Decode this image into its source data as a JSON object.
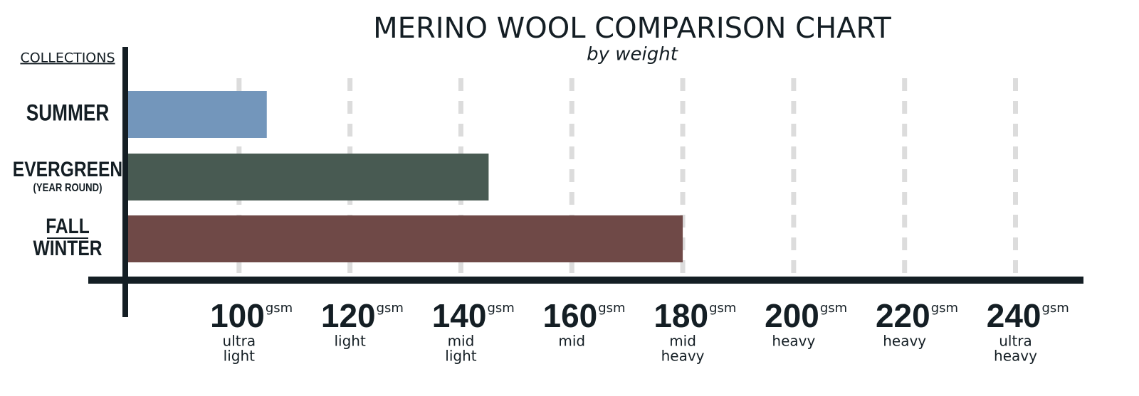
{
  "chart_data": {
    "type": "bar",
    "orientation": "horizontal",
    "title": "MERINO WOOL COMPARISON CHART",
    "subtitle": "by weight",
    "y_label": "COLLECTIONS",
    "categories": [
      [
        "SUMMER"
      ],
      [
        "EVERGREEN",
        "(YEAR ROUND)"
      ],
      [
        "FALL",
        "WINTER"
      ]
    ],
    "values": [
      105,
      145,
      180
    ],
    "colors": [
      "#7396bb",
      "#485a52",
      "#6f4947"
    ],
    "xlim": [
      80,
      252
    ],
    "xticks": [
      100,
      120,
      140,
      160,
      180,
      200,
      220,
      240
    ],
    "x_unit": "gsm",
    "xtick_notes": [
      [
        "ultra",
        "light"
      ],
      [
        "light"
      ],
      [
        "mid",
        "light"
      ],
      [
        "mid"
      ],
      [
        "mid",
        "heavy"
      ],
      [
        "heavy"
      ],
      [
        "heavy"
      ],
      [
        "ultra",
        "heavy"
      ]
    ],
    "grid": true
  }
}
